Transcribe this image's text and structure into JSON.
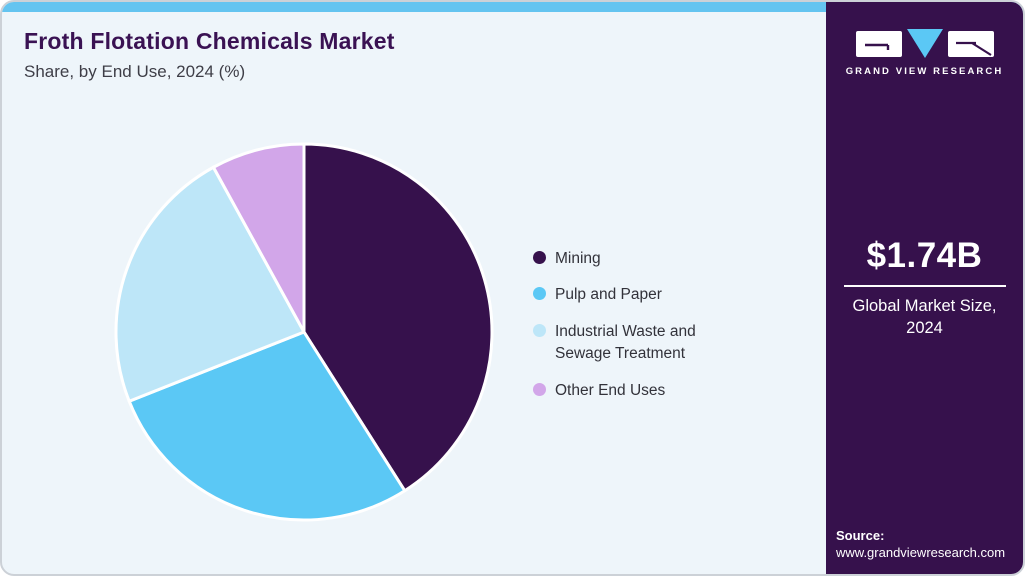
{
  "header": {
    "title": "Froth Flotation Chemicals Market",
    "subtitle": "Share, by End Use, 2024 (%)"
  },
  "chart_data": {
    "type": "pie",
    "title": "Froth Flotation Chemicals Market Share, by End Use, 2024 (%)",
    "categories": [
      "Mining",
      "Pulp and Paper",
      "Industrial Waste and Sewage Treatment",
      "Other End Uses"
    ],
    "values": [
      41,
      28,
      23,
      8
    ],
    "unit": "%",
    "colors": [
      "#36114c",
      "#5bc8f5",
      "#bde6f8",
      "#d2a6e9"
    ],
    "start_angle_deg": 0,
    "direction": "clockwise",
    "legend_position": "right",
    "slice_gap_color": "#ffffff"
  },
  "legend": {
    "items": [
      {
        "label": "Mining",
        "color": "#36114c"
      },
      {
        "label": "Pulp and Paper",
        "color": "#5bc8f5"
      },
      {
        "label": "Industrial Waste and Sewage Treatment",
        "color": "#bde6f8"
      },
      {
        "label": "Other End Uses",
        "color": "#d2a6e9"
      }
    ]
  },
  "sidebar": {
    "brand": "GRAND VIEW RESEARCH",
    "market_size": {
      "value": "$1.74B",
      "label_line1": "Global Market Size,",
      "label_line2": "2024"
    },
    "source": {
      "label": "Source:",
      "url": "www.grandviewresearch.com"
    }
  },
  "colors": {
    "accent_bar": "#64c4f0",
    "card_background": "#eef5fa",
    "card_border": "#ccd1d7",
    "sidebar_background": "#36114c",
    "title_text": "#3a1253",
    "logo_triangle": "#5bc8f5"
  }
}
